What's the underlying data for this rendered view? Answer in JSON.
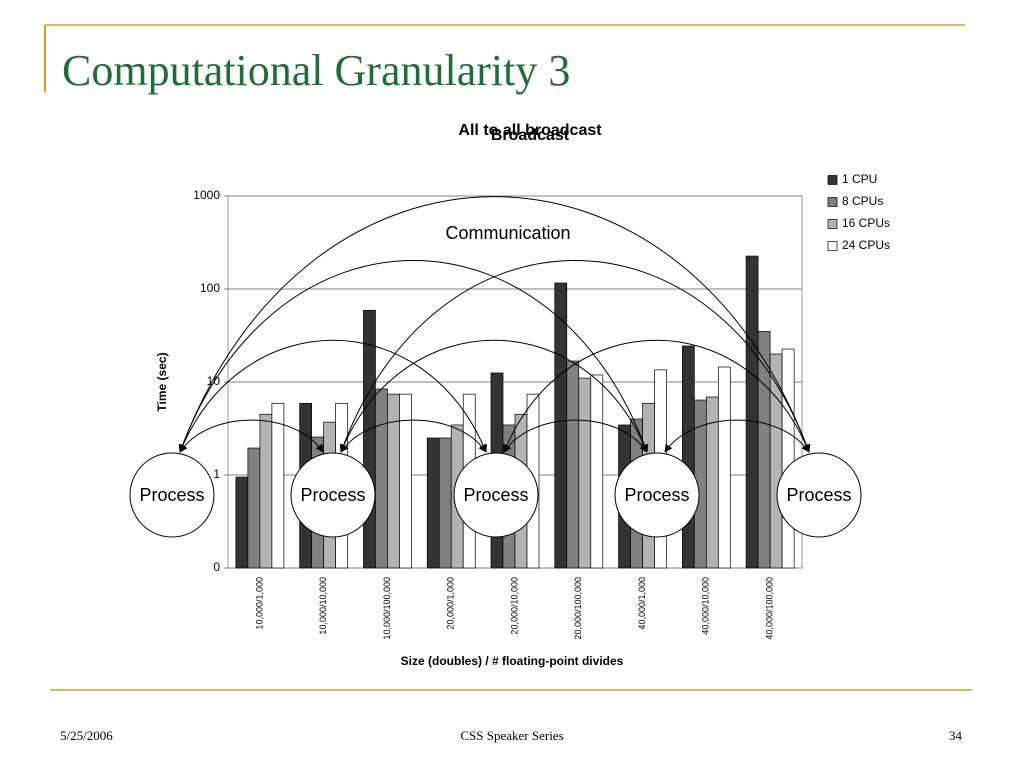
{
  "slide": {
    "title": "Computational Granularity 3",
    "footer_date": "5/25/2006",
    "footer_center": "CSS Speaker Series",
    "page_number": "34"
  },
  "chart_data": {
    "type": "bar",
    "title": "All to all broadcast",
    "title_overlay": "Broadcast",
    "x_label": "Size (doubles) / # floating-point divides",
    "y_label": "Time (sec)",
    "log_scale": true,
    "grid": true,
    "legend": "right",
    "categories": [
      "10,000/1,000",
      "10,000/10,000",
      "10,000/100,000",
      "20,000/1,000",
      "20,000/10,000",
      "20,000/100,000",
      "40,000/1,000",
      "40,000/10,000",
      "40,000/100,000"
    ],
    "series": [
      {
        "name": "1 CPU",
        "color": "#333333",
        "values": [
          0.95,
          5.9,
          59,
          2.5,
          12.5,
          116,
          3.45,
          24.4,
          226
        ]
      },
      {
        "name": "8 CPUs",
        "color": "#808080",
        "values": [
          1.95,
          2.56,
          8.4,
          2.5,
          3.45,
          16.8,
          4,
          6.4,
          35
        ]
      },
      {
        "name": "16 CPUs",
        "color": "#b3b3b3",
        "values": [
          4.5,
          3.7,
          7.4,
          3.45,
          4.5,
          11,
          5.9,
          6.9,
          20
        ]
      },
      {
        "name": "24 CPUs",
        "color": "#ffffff",
        "values": [
          5.9,
          5.9,
          7.4,
          7.4,
          7.4,
          11.9,
          13.5,
          14.5,
          22.6
        ]
      }
    ],
    "ylim": [
      0.1,
      1000
    ],
    "yticks": [
      {
        "value": 0.1,
        "label": "0"
      },
      1,
      10,
      100,
      1000
    ],
    "annotations": {
      "communication": "Communication",
      "processes": [
        "Process",
        "Process",
        "Process",
        "Process",
        "Process"
      ]
    }
  }
}
